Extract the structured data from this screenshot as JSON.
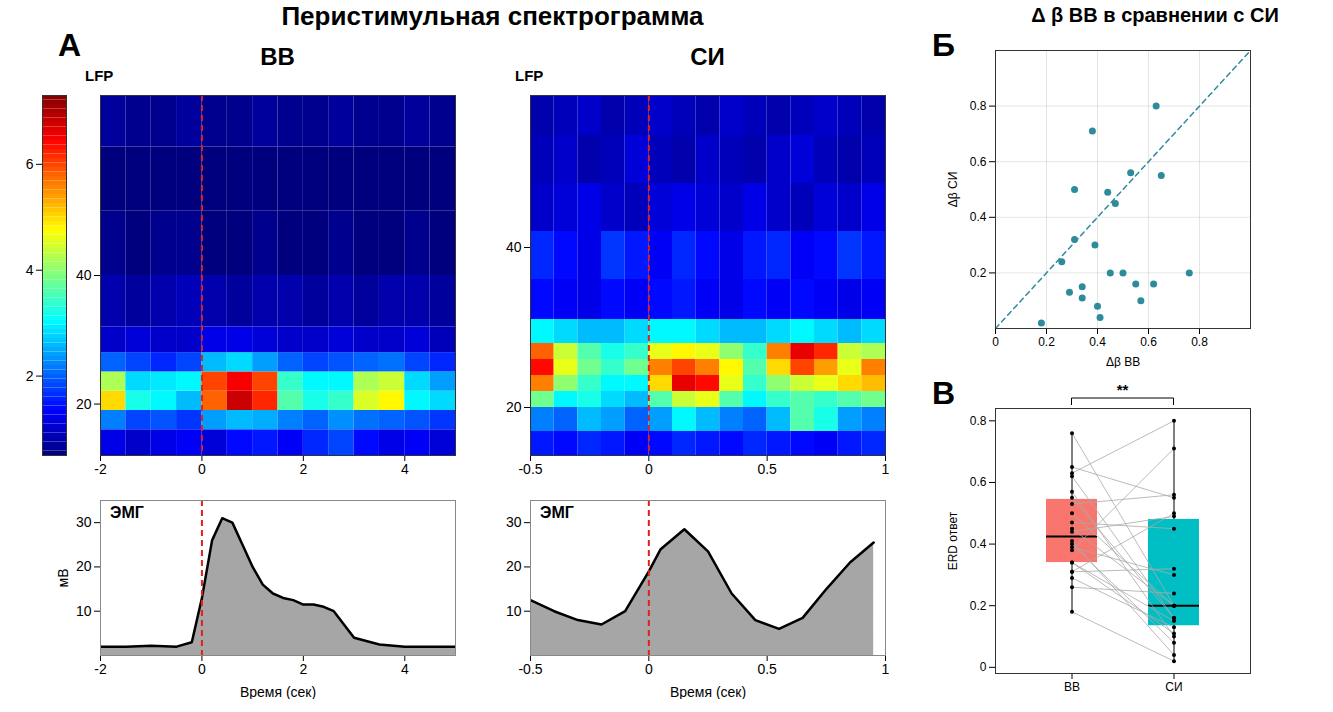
{
  "title": "Перистимульная спектрограмма",
  "chart_data": [
    {
      "type": "heatmap",
      "panel": "А",
      "title": "ВВ",
      "label": "LFP",
      "x_bins": [
        -2,
        -1.5,
        -1,
        -0.5,
        0,
        0.5,
        1,
        1.5,
        2,
        2.5,
        3,
        3.5,
        4,
        4.5,
        5
      ],
      "y_bins": [
        12,
        16,
        19,
        22,
        25,
        28,
        32,
        40,
        50,
        60,
        68
      ],
      "values": [
        [
          1.2,
          1.0,
          1.2,
          1.3,
          1.1,
          1.4,
          1.5,
          1.3,
          1.6,
          1.8,
          1.4,
          1.2,
          1.3,
          1.1
        ],
        [
          2.2,
          1.8,
          1.9,
          1.7,
          2.4,
          2.6,
          2.5,
          2.2,
          2.0,
          2.3,
          2.1,
          2.0,
          1.9,
          1.7
        ],
        [
          5.0,
          3.2,
          3.0,
          2.6,
          5.8,
          6.8,
          6.2,
          3.6,
          3.2,
          3.4,
          4.5,
          4.8,
          3.0,
          2.8
        ],
        [
          4.2,
          2.8,
          2.9,
          3.0,
          6.0,
          6.5,
          6.0,
          3.4,
          3.0,
          3.0,
          4.2,
          4.4,
          2.8,
          2.4
        ],
        [
          2.0,
          1.8,
          1.6,
          1.8,
          2.6,
          2.8,
          2.4,
          2.0,
          1.8,
          1.9,
          2.0,
          2.1,
          1.8,
          1.6
        ],
        [
          1.0,
          1.1,
          1.0,
          1.0,
          1.2,
          1.2,
          1.1,
          1.0,
          1.0,
          1.1,
          1.0,
          1.0,
          1.1,
          0.9
        ],
        [
          0.8,
          0.7,
          0.8,
          0.9,
          0.8,
          0.7,
          0.8,
          0.8,
          0.7,
          0.8,
          0.7,
          0.8,
          0.8,
          0.7
        ],
        [
          0.6,
          0.5,
          0.6,
          0.6,
          0.5,
          0.5,
          0.6,
          0.5,
          0.5,
          0.6,
          0.5,
          0.5,
          0.6,
          0.5
        ],
        [
          0.5,
          0.4,
          0.5,
          0.5,
          0.4,
          0.4,
          0.5,
          0.4,
          0.4,
          0.5,
          0.4,
          0.4,
          0.5,
          0.4
        ],
        [
          0.7,
          0.6,
          0.6,
          0.7,
          0.6,
          0.6,
          0.7,
          0.6,
          0.6,
          0.7,
          0.6,
          0.6,
          0.7,
          0.6
        ]
      ],
      "xlim": [
        -2,
        5
      ],
      "xticks": [
        -2,
        0,
        2,
        4
      ],
      "ylim": [
        12,
        68
      ],
      "yticks": [
        20,
        40
      ],
      "stimulus": 0,
      "colorbar": {
        "range": [
          0.5,
          7.3
        ],
        "ticks": [
          2,
          4,
          6
        ]
      }
    },
    {
      "type": "heatmap",
      "title": "СИ",
      "label": "LFP",
      "x_bins": [
        -0.5,
        -0.4,
        -0.3,
        -0.2,
        -0.1,
        0,
        0.1,
        0.2,
        0.3,
        0.4,
        0.5,
        0.6,
        0.7,
        0.8,
        0.9,
        1
      ],
      "y_bins": [
        14,
        17,
        20,
        22,
        24,
        26,
        28,
        31,
        36,
        42,
        48,
        54,
        59
      ],
      "values": [
        [
          1.5,
          1.4,
          1.6,
          1.5,
          1.3,
          1.4,
          1.6,
          1.5,
          1.4,
          1.6,
          1.5,
          1.4,
          1.3,
          1.5,
          1.6
        ],
        [
          2.2,
          2.0,
          2.6,
          2.4,
          2.0,
          2.4,
          3.0,
          2.6,
          2.2,
          2.0,
          2.6,
          3.6,
          3.2,
          2.4,
          2.2
        ],
        [
          3.8,
          3.0,
          3.2,
          2.8,
          2.6,
          3.6,
          4.4,
          4.6,
          3.6,
          3.0,
          3.4,
          3.6,
          3.4,
          3.6,
          3.8
        ],
        [
          5.6,
          4.0,
          3.4,
          3.0,
          3.0,
          5.0,
          6.6,
          6.4,
          4.6,
          3.4,
          4.0,
          4.4,
          4.6,
          5.0,
          5.2
        ],
        [
          6.4,
          4.6,
          3.8,
          3.4,
          3.8,
          5.6,
          6.0,
          5.6,
          4.8,
          3.6,
          5.0,
          6.0,
          5.4,
          4.6,
          5.6
        ],
        [
          5.8,
          4.4,
          3.6,
          3.2,
          3.4,
          4.6,
          4.8,
          4.6,
          4.0,
          3.4,
          5.6,
          6.6,
          6.2,
          4.4,
          4.2
        ],
        [
          3.0,
          2.8,
          2.6,
          2.6,
          2.8,
          3.0,
          3.0,
          2.8,
          2.6,
          2.6,
          2.8,
          3.0,
          2.8,
          2.6,
          2.8
        ],
        [
          1.4,
          1.3,
          1.2,
          1.4,
          1.3,
          1.4,
          1.5,
          1.3,
          1.2,
          1.4,
          1.3,
          1.4,
          1.3,
          1.2,
          1.3
        ],
        [
          1.6,
          1.4,
          1.2,
          1.7,
          1.5,
          1.3,
          1.6,
          1.4,
          1.2,
          1.5,
          1.6,
          1.3,
          1.4,
          1.7,
          1.5
        ],
        [
          1.0,
          1.1,
          1.2,
          1.0,
          0.9,
          1.1,
          1.2,
          1.1,
          1.0,
          1.2,
          1.0,
          0.9,
          1.1,
          1.0,
          1.2
        ],
        [
          0.9,
          1.0,
          0.8,
          0.9,
          1.1,
          0.9,
          0.8,
          1.0,
          0.9,
          0.8,
          1.0,
          1.1,
          0.9,
          0.8,
          0.9
        ],
        [
          0.8,
          0.9,
          1.0,
          0.8,
          0.9,
          1.0,
          0.9,
          0.8,
          1.0,
          0.9,
          0.8,
          0.9,
          1.0,
          0.9,
          0.8
        ]
      ],
      "xlim": [
        -0.5,
        1
      ],
      "xticks": [
        -0.5,
        0,
        0.5,
        1
      ],
      "ylim": [
        14,
        59
      ],
      "yticks": [
        20,
        40
      ],
      "stimulus": 0
    },
    {
      "type": "area",
      "label": "ЭМГ",
      "xlabel": "Время (сек)",
      "ylabel": "мВ",
      "color": "#a6a6a6",
      "x": [
        -2,
        -1.5,
        -1,
        -0.5,
        -0.2,
        0,
        0.2,
        0.4,
        0.6,
        0.8,
        1,
        1.2,
        1.4,
        1.6,
        1.8,
        2,
        2.2,
        2.4,
        2.6,
        2.8,
        3,
        3.5,
        4,
        4.5,
        5
      ],
      "values": [
        2,
        2,
        2.2,
        2,
        3,
        13,
        26,
        31,
        30,
        25,
        20,
        16,
        14,
        13,
        12.5,
        11.5,
        11.5,
        11,
        10,
        7,
        4,
        2.5,
        2,
        2,
        2
      ],
      "xlim": [
        -2,
        5
      ],
      "xticks": [
        -2,
        0,
        2,
        4
      ],
      "ylim": [
        0,
        35
      ],
      "yticks": [
        10,
        20,
        30
      ],
      "stimulus": 0
    },
    {
      "type": "area",
      "label": "ЭМГ",
      "xlabel": "Время (сек)",
      "color": "#a6a6a6",
      "x": [
        -0.5,
        -0.4,
        -0.3,
        -0.2,
        -0.1,
        0,
        0.05,
        0.15,
        0.25,
        0.35,
        0.45,
        0.55,
        0.65,
        0.75,
        0.85,
        0.95
      ],
      "values": [
        12.5,
        10,
        8,
        7,
        10,
        19,
        24,
        28.5,
        23.5,
        14,
        8,
        6,
        8.5,
        15,
        21,
        25.5
      ],
      "xlim": [
        -0.5,
        1
      ],
      "xticks": [
        -0.5,
        0,
        0.5,
        1
      ],
      "ylim": [
        0,
        35
      ],
      "yticks": [
        10,
        20,
        30
      ],
      "stimulus": 0
    },
    {
      "type": "scatter",
      "panel": "Б",
      "title": "Δ β ВВ в сравнении с СИ",
      "xlabel": "Δβ ВВ",
      "ylabel": "Δβ СИ",
      "color": "#2e8b9b",
      "grid": true,
      "x": [
        0.18,
        0.26,
        0.29,
        0.31,
        0.31,
        0.34,
        0.34,
        0.38,
        0.39,
        0.4,
        0.41,
        0.44,
        0.45,
        0.47,
        0.5,
        0.53,
        0.55,
        0.57,
        0.62,
        0.63,
        0.65,
        0.76
      ],
      "values": [
        0.02,
        0.24,
        0.13,
        0.32,
        0.5,
        0.15,
        0.11,
        0.71,
        0.3,
        0.08,
        0.04,
        0.49,
        0.2,
        0.45,
        0.2,
        0.56,
        0.16,
        0.1,
        0.16,
        0.8,
        0.55,
        0.2
      ],
      "xlim": [
        0,
        1
      ],
      "xticks": [
        0,
        0.2,
        0.4,
        0.6,
        0.8
      ],
      "ylim": [
        0,
        1
      ],
      "yticks": [
        0.2,
        0.4,
        0.6,
        0.8
      ]
    },
    {
      "type": "box",
      "panel": "В",
      "ylabel": "ERD ответ",
      "annotation": "**",
      "categories": [
        "ВВ",
        "СИ"
      ],
      "colors": [
        "#f8766d",
        "#00bfc4"
      ],
      "values": [
        [
          0.18,
          0.26,
          0.29,
          0.31,
          0.31,
          0.34,
          0.34,
          0.38,
          0.39,
          0.4,
          0.41,
          0.44,
          0.45,
          0.47,
          0.5,
          0.53,
          0.55,
          0.57,
          0.62,
          0.63,
          0.65,
          0.76
        ],
        [
          0.02,
          0.24,
          0.13,
          0.32,
          0.5,
          0.15,
          0.11,
          0.71,
          0.3,
          0.08,
          0.04,
          0.49,
          0.2,
          0.45,
          0.2,
          0.56,
          0.16,
          0.1,
          0.16,
          0.8,
          0.55,
          0.2
        ]
      ],
      "ylim": [
        -0.02,
        0.84
      ],
      "yticks": [
        0,
        0.2,
        0.4,
        0.6,
        0.8
      ]
    }
  ]
}
